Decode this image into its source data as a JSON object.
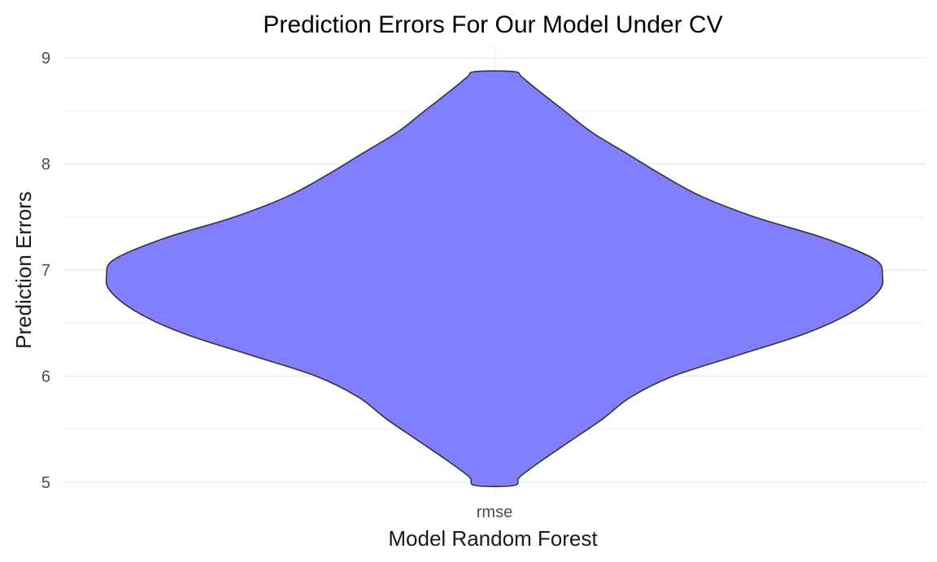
{
  "chart_data": {
    "type": "violin",
    "title": "Prediction Errors For Our Model Under CV",
    "xlabel": "Model Random Forest",
    "ylabel": "Prediction Errors",
    "categories": [
      "rmse"
    ],
    "ylim": [
      4.9,
      9.1
    ],
    "yticks": [
      5,
      6,
      7,
      8,
      9
    ],
    "grid": true,
    "legend": "none",
    "fill_color": "#7f7fff",
    "outline_color": "#333333",
    "series": [
      {
        "category": "rmse",
        "min": 4.97,
        "max": 8.87,
        "density_profile": [
          {
            "y": 4.97,
            "w": 0.05
          },
          {
            "y": 5.05,
            "w": 0.065
          },
          {
            "y": 5.2,
            "w": 0.12
          },
          {
            "y": 5.4,
            "w": 0.2
          },
          {
            "y": 5.6,
            "w": 0.28
          },
          {
            "y": 5.8,
            "w": 0.35
          },
          {
            "y": 6.0,
            "w": 0.46
          },
          {
            "y": 6.2,
            "w": 0.63
          },
          {
            "y": 6.4,
            "w": 0.8
          },
          {
            "y": 6.6,
            "w": 0.92
          },
          {
            "y": 6.8,
            "w": 0.99
          },
          {
            "y": 6.95,
            "w": 1.0
          },
          {
            "y": 7.1,
            "w": 0.98
          },
          {
            "y": 7.3,
            "w": 0.85
          },
          {
            "y": 7.5,
            "w": 0.67
          },
          {
            "y": 7.7,
            "w": 0.53
          },
          {
            "y": 7.9,
            "w": 0.43
          },
          {
            "y": 8.1,
            "w": 0.34
          },
          {
            "y": 8.3,
            "w": 0.25
          },
          {
            "y": 8.5,
            "w": 0.18
          },
          {
            "y": 8.7,
            "w": 0.11
          },
          {
            "y": 8.82,
            "w": 0.07
          },
          {
            "y": 8.87,
            "w": 0.05
          }
        ]
      }
    ]
  }
}
